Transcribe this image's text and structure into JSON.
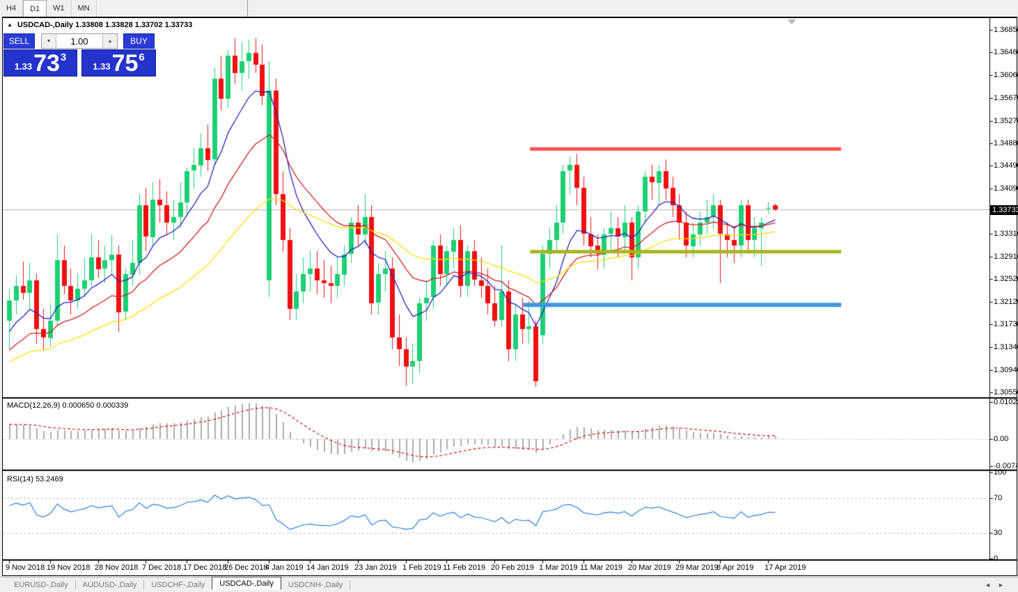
{
  "timeframes": {
    "items": [
      {
        "label": "H4",
        "active": false
      },
      {
        "label": "D1",
        "active": true
      },
      {
        "label": "W1",
        "active": false
      },
      {
        "label": "MN",
        "active": false
      }
    ]
  },
  "chart_header": {
    "collapse_icon": "▲",
    "symbol_title": "USDCAD-,Daily",
    "ohlc_text": "1.33808 1.33828 1.33702 1.33733"
  },
  "trade_panel": {
    "sell_label": "SELL",
    "buy_label": "BUY",
    "volume": "1.00",
    "spin_down_icon": "▼",
    "spin_up_icon": "▲",
    "sell_price": {
      "small": "1.33",
      "big": "73",
      "sup": "3"
    },
    "buy_price": {
      "small": "1.33",
      "big": "75",
      "sup": "6"
    }
  },
  "colors": {
    "candle_bull": "#1ecf74",
    "candle_bear": "#ee1111",
    "ma_fast": "#2222bb",
    "ma_mid": "#cc2222",
    "ma_slow": "#ffdf00",
    "hline_red": "#fb5252",
    "hline_olive": "#a6b51f",
    "hline_blue": "#3f97dd",
    "macd_histogram": "#adadad",
    "macd_signal": "#cc1111",
    "rsi_line": "#2d7fd4",
    "current_price_line": "#b4b4b4",
    "price_tag_bg": "#000000",
    "button_blue": "#2a3cd6"
  },
  "chart_data": {
    "type": "candlestick",
    "symbol": "USDCAD-",
    "period": "Daily",
    "title": "USDCAD-,Daily",
    "current_price": "1.33733",
    "price_axis": {
      "max": 1.3685,
      "min": 1.3055,
      "labels": [
        "1.36850",
        "1.36460",
        "1.36060",
        "1.35670",
        "1.35270",
        "1.34880",
        "1.34490",
        "1.34090",
        "1.33310",
        "1.32910",
        "1.32520",
        "1.32120",
        "1.31730",
        "1.31340",
        "1.30940",
        "1.30550"
      ]
    },
    "x_axis": {
      "ticks": [
        {
          "label": "9 Nov 2018",
          "index": 0
        },
        {
          "label": "19 Nov 2018",
          "index": 6
        },
        {
          "label": "28 Nov 2018",
          "index": 13
        },
        {
          "label": "7 Dec 2018",
          "index": 20
        },
        {
          "label": "17 Dec 2018",
          "index": 26
        },
        {
          "label": "26 Dec 2018",
          "index": 32
        },
        {
          "label": "4 Jan 2019",
          "index": 38
        },
        {
          "label": "14 Jan 2019",
          "index": 44
        },
        {
          "label": "23 Jan 2019",
          "index": 51
        },
        {
          "label": "1 Feb 2019",
          "index": 58
        },
        {
          "label": "11 Feb 2019",
          "index": 64
        },
        {
          "label": "20 Feb 2019",
          "index": 71
        },
        {
          "label": "1 Mar 2019",
          "index": 78
        },
        {
          "label": "11 Mar 2019",
          "index": 84
        },
        {
          "label": "20 Mar 2019",
          "index": 91
        },
        {
          "label": "29 Mar 2019",
          "index": 98
        },
        {
          "label": "8 Apr 2019",
          "index": 104
        },
        {
          "label": "17 Apr 2019",
          "index": 111
        }
      ]
    },
    "candles": [
      [
        1.318,
        1.3235,
        1.313,
        1.3215
      ],
      [
        1.3215,
        1.3258,
        1.319,
        1.324
      ],
      [
        1.324,
        1.3282,
        1.3215,
        1.3228
      ],
      [
        1.3228,
        1.328,
        1.32,
        1.325
      ],
      [
        1.325,
        1.3262,
        1.314,
        1.3165
      ],
      [
        1.3165,
        1.32,
        1.313,
        1.315
      ],
      [
        1.315,
        1.321,
        1.3135,
        1.318
      ],
      [
        1.318,
        1.333,
        1.317,
        1.3285
      ],
      [
        1.3285,
        1.331,
        1.3225,
        1.324
      ],
      [
        1.324,
        1.327,
        1.319,
        1.3215
      ],
      [
        1.3215,
        1.3262,
        1.32,
        1.3235
      ],
      [
        1.3235,
        1.3288,
        1.322,
        1.325
      ],
      [
        1.325,
        1.333,
        1.324,
        1.329
      ],
      [
        1.329,
        1.332,
        1.3255,
        1.327
      ],
      [
        1.327,
        1.331,
        1.3245,
        1.3285
      ],
      [
        1.3285,
        1.3328,
        1.326,
        1.3295
      ],
      [
        1.3295,
        1.331,
        1.316,
        1.3195
      ],
      [
        1.3195,
        1.327,
        1.318,
        1.326
      ],
      [
        1.326,
        1.332,
        1.324,
        1.328
      ],
      [
        1.328,
        1.34,
        1.326,
        1.338
      ],
      [
        1.338,
        1.341,
        1.33,
        1.3325
      ],
      [
        1.3325,
        1.342,
        1.331,
        1.339
      ],
      [
        1.339,
        1.3425,
        1.335,
        1.338
      ],
      [
        1.338,
        1.3405,
        1.333,
        1.335
      ],
      [
        1.335,
        1.339,
        1.332,
        1.336
      ],
      [
        1.336,
        1.342,
        1.334,
        1.3385
      ],
      [
        1.3385,
        1.3445,
        1.336,
        1.344
      ],
      [
        1.344,
        1.348,
        1.341,
        1.345
      ],
      [
        1.345,
        1.3505,
        1.343,
        1.348
      ],
      [
        1.348,
        1.352,
        1.344,
        1.346
      ],
      [
        1.346,
        1.362,
        1.345,
        1.36
      ],
      [
        1.36,
        1.364,
        1.3545,
        1.3565
      ],
      [
        1.3565,
        1.365,
        1.355,
        1.364
      ],
      [
        1.364,
        1.367,
        1.359,
        1.361
      ],
      [
        1.361,
        1.3665,
        1.358,
        1.363
      ],
      [
        1.363,
        1.3668,
        1.36,
        1.3645
      ],
      [
        1.3645,
        1.367,
        1.361,
        1.3625
      ],
      [
        1.3625,
        1.366,
        1.3555,
        1.357
      ],
      [
        1.325,
        1.363,
        1.322,
        1.358
      ],
      [
        1.358,
        1.36,
        1.338,
        1.34
      ],
      [
        1.34,
        1.344,
        1.33,
        1.332
      ],
      [
        1.332,
        1.334,
        1.318,
        1.32
      ],
      [
        1.32,
        1.326,
        1.318,
        1.323
      ],
      [
        1.323,
        1.329,
        1.321,
        1.326
      ],
      [
        1.326,
        1.33,
        1.323,
        1.327
      ],
      [
        1.327,
        1.33,
        1.3225,
        1.325
      ],
      [
        1.325,
        1.3285,
        1.322,
        1.3245
      ],
      [
        1.3245,
        1.3275,
        1.321,
        1.324
      ],
      [
        1.324,
        1.329,
        1.322,
        1.326
      ],
      [
        1.326,
        1.331,
        1.324,
        1.3295
      ],
      [
        1.3295,
        1.336,
        1.328,
        1.335
      ],
      [
        1.335,
        1.338,
        1.331,
        1.333
      ],
      [
        1.333,
        1.34,
        1.331,
        1.336
      ],
      [
        1.336,
        1.338,
        1.319,
        1.321
      ],
      [
        1.321,
        1.328,
        1.319,
        1.326
      ],
      [
        1.326,
        1.33,
        1.323,
        1.327
      ],
      [
        1.327,
        1.329,
        1.313,
        1.315
      ],
      [
        1.315,
        1.319,
        1.31,
        1.313
      ],
      [
        1.313,
        1.315,
        1.3065,
        1.31
      ],
      [
        1.31,
        1.314,
        1.307,
        1.311
      ],
      [
        1.311,
        1.322,
        1.309,
        1.321
      ],
      [
        1.321,
        1.325,
        1.318,
        1.322
      ],
      [
        1.322,
        1.332,
        1.32,
        1.331
      ],
      [
        1.331,
        1.333,
        1.324,
        1.326
      ],
      [
        1.326,
        1.331,
        1.324,
        1.33
      ],
      [
        1.33,
        1.334,
        1.327,
        1.332
      ],
      [
        1.332,
        1.3345,
        1.322,
        1.324
      ],
      [
        1.324,
        1.331,
        1.322,
        1.33
      ],
      [
        1.33,
        1.332,
        1.324,
        1.325
      ],
      [
        1.325,
        1.329,
        1.322,
        1.324
      ],
      [
        1.324,
        1.327,
        1.319,
        1.321
      ],
      [
        1.321,
        1.324,
        1.317,
        1.318
      ],
      [
        1.318,
        1.331,
        1.317,
        1.323
      ],
      [
        1.323,
        1.325,
        1.311,
        1.313
      ],
      [
        1.313,
        1.321,
        1.311,
        1.319
      ],
      [
        1.319,
        1.322,
        1.314,
        1.3165
      ],
      [
        1.3165,
        1.3215,
        1.314,
        1.317
      ],
      [
        1.317,
        1.318,
        1.3065,
        1.3075
      ],
      [
        1.3155,
        1.331,
        1.314,
        1.3296
      ],
      [
        1.3296,
        1.334,
        1.327,
        1.332
      ],
      [
        1.332,
        1.338,
        1.33,
        1.335
      ],
      [
        1.335,
        1.345,
        1.333,
        1.344
      ],
      [
        1.344,
        1.3465,
        1.34,
        1.345
      ],
      [
        1.345,
        1.347,
        1.338,
        1.341
      ],
      [
        1.341,
        1.343,
        1.331,
        1.333
      ],
      [
        1.333,
        1.336,
        1.329,
        1.331
      ],
      [
        1.331,
        1.333,
        1.327,
        1.3295
      ],
      [
        1.3295,
        1.334,
        1.327,
        1.333
      ],
      [
        1.333,
        1.337,
        1.33,
        1.334
      ],
      [
        1.334,
        1.336,
        1.329,
        1.3325
      ],
      [
        1.3325,
        1.338,
        1.33,
        1.335
      ],
      [
        1.335,
        1.336,
        1.325,
        1.329
      ],
      [
        1.329,
        1.338,
        1.327,
        1.337
      ],
      [
        1.337,
        1.344,
        1.335,
        1.343
      ],
      [
        1.343,
        1.345,
        1.339,
        1.342
      ],
      [
        1.342,
        1.345,
        1.338,
        1.344
      ],
      [
        1.344,
        1.346,
        1.339,
        1.341
      ],
      [
        1.341,
        1.343,
        1.336,
        1.338
      ],
      [
        1.338,
        1.34,
        1.332,
        1.335
      ],
      [
        1.335,
        1.337,
        1.329,
        1.331
      ],
      [
        1.331,
        1.335,
        1.329,
        1.333
      ],
      [
        1.333,
        1.337,
        1.331,
        1.335
      ],
      [
        1.335,
        1.339,
        1.333,
        1.336
      ],
      [
        1.336,
        1.34,
        1.334,
        1.338
      ],
      [
        1.338,
        1.339,
        1.3245,
        1.333
      ],
      [
        1.333,
        1.335,
        1.329,
        1.332
      ],
      [
        1.332,
        1.334,
        1.328,
        1.331
      ],
      [
        1.331,
        1.339,
        1.329,
        1.338
      ],
      [
        1.338,
        1.339,
        1.33,
        1.332
      ],
      [
        1.332,
        1.336,
        1.329,
        1.334
      ],
      [
        1.334,
        1.336,
        1.3275,
        1.335
      ],
      [
        1.3374,
        1.3386,
        1.3364,
        1.3375
      ],
      [
        1.33808,
        1.33828,
        1.33702,
        1.33733
      ]
    ],
    "moving_averages": [
      {
        "name": "fast-ema",
        "period": 9,
        "seed": 1.3147
      },
      {
        "name": "mid-ema",
        "period": 20,
        "seed": 1.3119
      },
      {
        "name": "slow-ema",
        "period": 42,
        "seed": 1.3103
      }
    ],
    "hlines": [
      {
        "name": "resistance",
        "price": 1.3478,
        "from_index": 76.5,
        "to_index": 122,
        "thickness": 5,
        "color_key": "hline_red"
      },
      {
        "name": "support-mid",
        "price": 1.32995,
        "from_index": 76.5,
        "to_index": 122,
        "thickness": 5,
        "color_key": "hline_olive"
      },
      {
        "name": "support-low",
        "price": 1.3207,
        "from_index": 75.5,
        "to_index": 122,
        "thickness": 6,
        "color_key": "hline_blue"
      }
    ],
    "indicators": {
      "macd": {
        "name": "MACD(12,26,9)",
        "values_text": "0.000650 0.000339",
        "params": {
          "fast": 12,
          "slow": 26,
          "signal": 9
        },
        "axis": [
          {
            "text": "0.010229",
            "value": 0.010229
          },
          {
            "text": "0.00",
            "value": 0
          },
          {
            "text": "-0.007477",
            "value": -0.007477
          }
        ]
      },
      "rsi": {
        "name": "RSI(14)",
        "value_text": "53.2469",
        "period": 14,
        "levels": [
          70,
          30
        ],
        "axis": [
          {
            "text": "100",
            "value": 100
          },
          {
            "text": "70",
            "value": 70
          },
          {
            "text": "30",
            "value": 30
          },
          {
            "text": "0",
            "value": 0
          }
        ]
      }
    }
  },
  "symbol_tabs": {
    "items": [
      {
        "label": "EURUSD-,Daily",
        "active": false
      },
      {
        "label": "AUDUSD-,Daily",
        "active": false
      },
      {
        "label": "USDCHF-,Daily",
        "active": false
      },
      {
        "label": "USDCAD-,Daily",
        "active": true
      },
      {
        "label": "USDCNH-,Daily",
        "active": false
      }
    ]
  },
  "scroll_arrows": {
    "left": "◄",
    "right": "►"
  }
}
